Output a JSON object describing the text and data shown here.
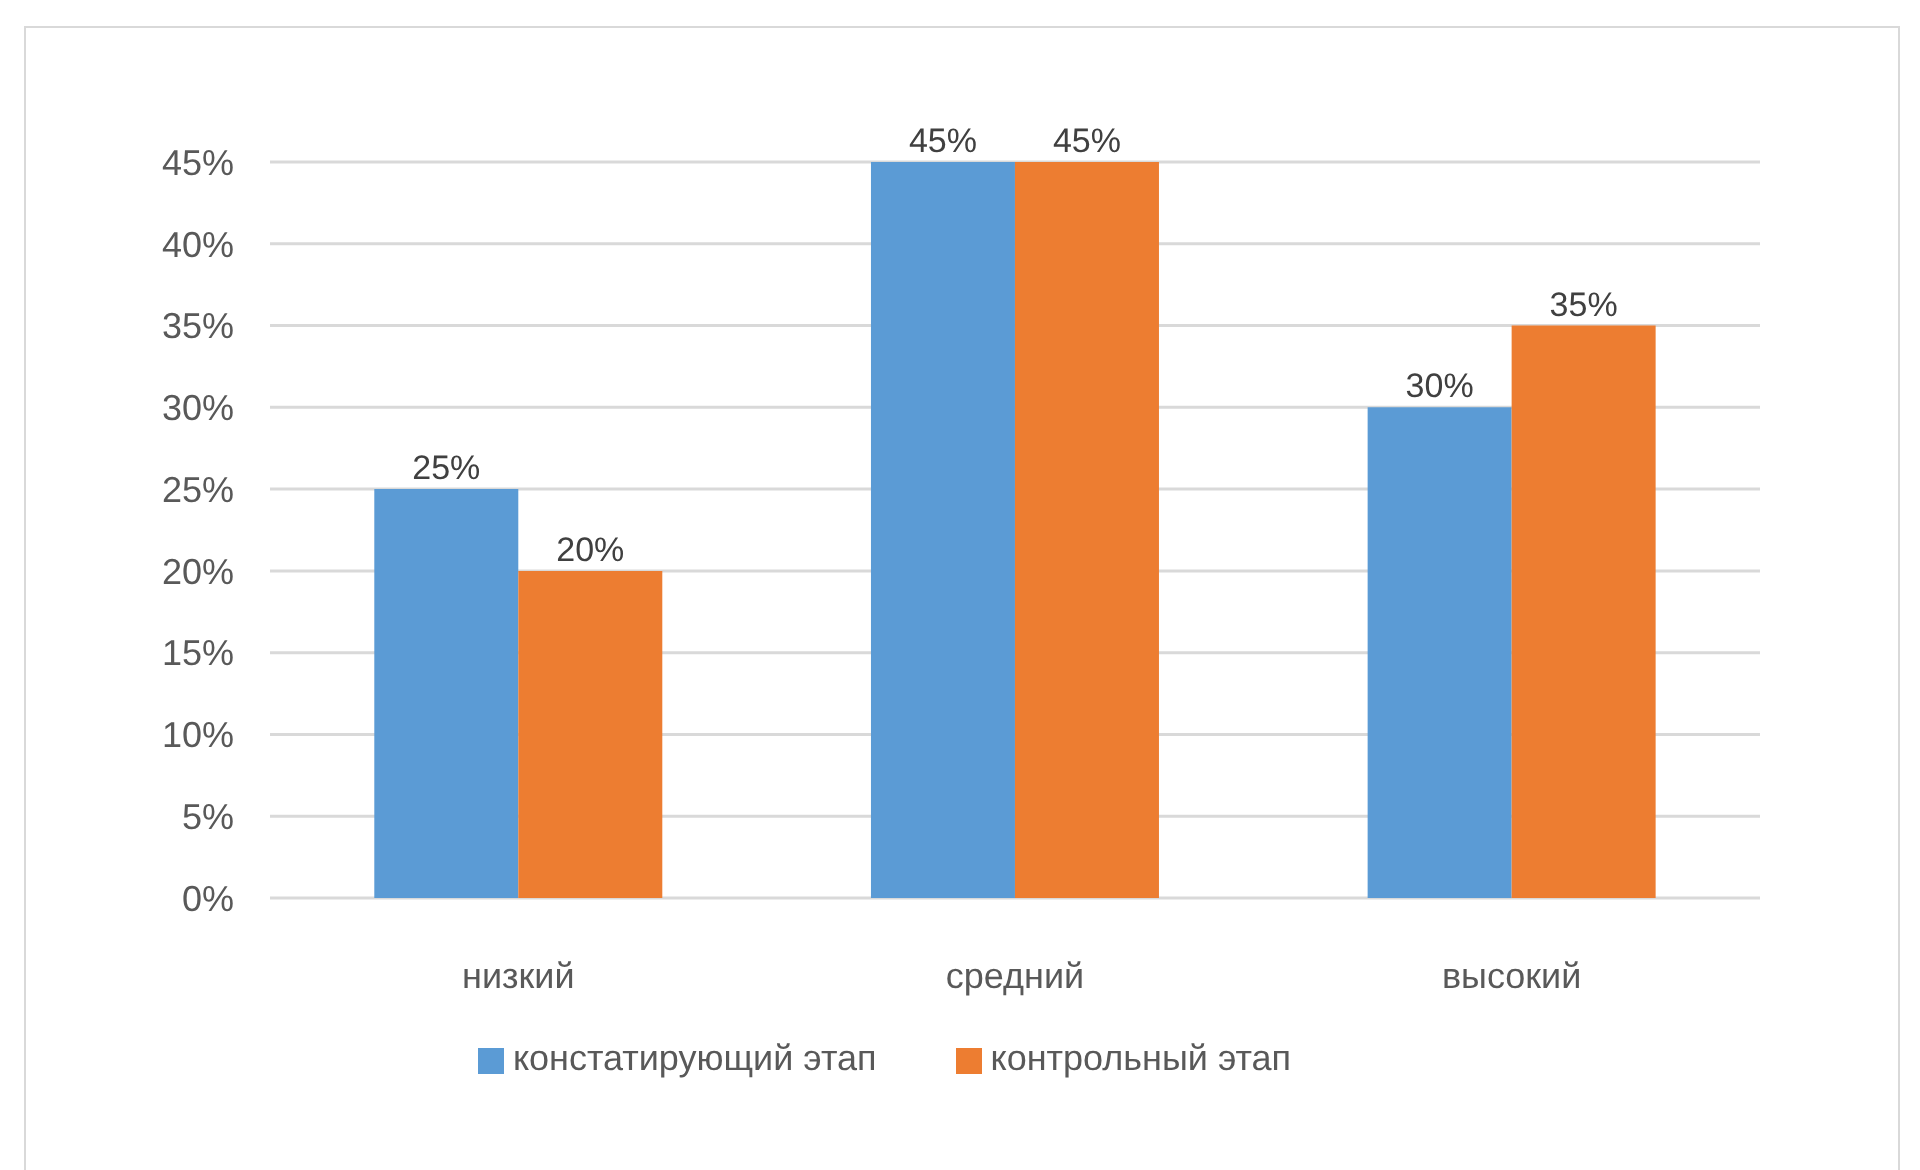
{
  "chart_data": {
    "type": "bar",
    "categories": [
      "низкий",
      "средний",
      "высокий"
    ],
    "series": [
      {
        "name": "констатирующий этап",
        "color": "#5b9bd5",
        "values": [
          25,
          45,
          30
        ],
        "value_labels": [
          "25%",
          "45%",
          "30%"
        ]
      },
      {
        "name": "контрольный этап",
        "color": "#ed7d31",
        "values": [
          20,
          45,
          35
        ],
        "value_labels": [
          "20%",
          "45%",
          "35%"
        ]
      }
    ],
    "ylim": [
      0,
      45
    ],
    "yticks": [
      {
        "value": 0,
        "label": "0%"
      },
      {
        "value": 5,
        "label": "5%"
      },
      {
        "value": 10,
        "label": "10%"
      },
      {
        "value": 15,
        "label": "15%"
      },
      {
        "value": 20,
        "label": "20%"
      },
      {
        "value": 25,
        "label": "25%"
      },
      {
        "value": 30,
        "label": "30%"
      },
      {
        "value": 35,
        "label": "35%"
      },
      {
        "value": 40,
        "label": "40%"
      },
      {
        "value": 45,
        "label": "45%"
      }
    ],
    "grid": "y",
    "legend": "bottom"
  }
}
